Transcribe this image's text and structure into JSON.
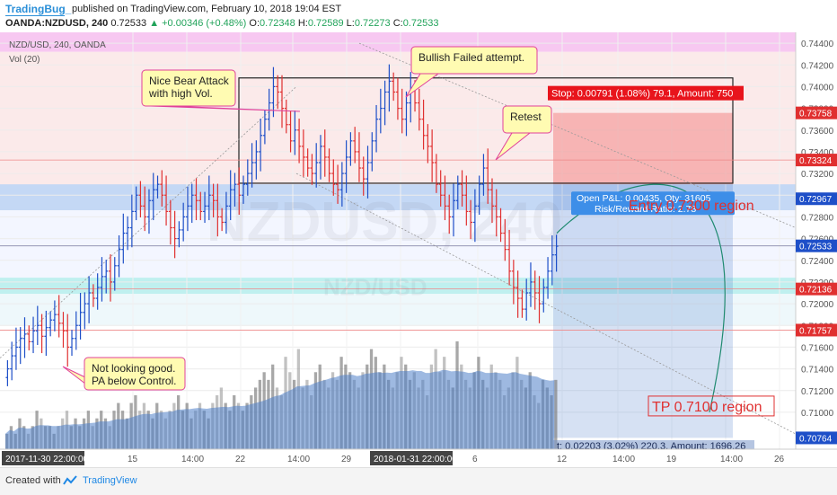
{
  "header": {
    "brand": "TradingBug_",
    "published": "published on TradingView.com, February 10, 2018 19:04 EST",
    "symbol": "OANDA:NZDUSD, 240",
    "last": "0.72533",
    "change": "▲ +0.00346 (+0.48%)",
    "o_label": "O:",
    "o": "0.72348",
    "h_label": "H:",
    "h": "0.72589",
    "l_label": "L:",
    "l": "0.72273",
    "c_label": "C:",
    "c": "0.72533"
  },
  "legend": {
    "main": "NZD/USD, 240, OANDA",
    "vol": "Vol (20)"
  },
  "footer": {
    "created": "Created with",
    "tv": "TradingView"
  },
  "annotations": {
    "bear": [
      "Nice Bear Attack",
      "with high Vol."
    ],
    "bullish": "Bullish Failed attempt.",
    "retest": "Retest",
    "notgood": [
      "Not looking good.",
      "PA below Control."
    ],
    "stop": "Stop: 0.00791 (1.08%) 79.1, Amount: 750",
    "openpl": [
      "Open P&L: 0.00435, Qty: 31605",
      "Risk/Reward Ratio: 2.78"
    ],
    "entry": "Entry 0.7300 region",
    "tp": "TP 0.7100 region",
    "target": "t: 0.02203 (3.02%) 220.3, Amount: 1696.26",
    "watermark1": "NZDUSD, 240",
    "watermark2": "NZD/USD"
  },
  "colors": {
    "up": "#1e4fc8",
    "down": "#e03030",
    "volume": "#4f7fc9",
    "grid": "#eeeeee"
  },
  "chart_data": {
    "type": "candlestick",
    "title": "NZD/USD, 240, OANDA",
    "ylim": [
      0.7066,
      0.745
    ],
    "yticks": [
      0.744,
      0.742,
      0.74,
      0.738,
      0.736,
      0.734,
      0.732,
      0.73,
      0.728,
      0.726,
      0.724,
      0.722,
      0.72,
      0.718,
      0.716,
      0.714,
      0.712,
      0.71
    ],
    "price_labels": [
      {
        "value": "0.73758",
        "y": 0.73758,
        "color": "#e03030"
      },
      {
        "value": "0.73324",
        "y": 0.73324,
        "color": "#e03030"
      },
      {
        "value": "0.72967",
        "y": 0.72967,
        "color": "#1e4fc8"
      },
      {
        "value": "0.72533",
        "y": 0.72533,
        "color": "#1e4fc8"
      },
      {
        "value": "0.72136",
        "y": 0.72136,
        "color": "#e03030"
      },
      {
        "value": "0.71757",
        "y": 0.71757,
        "color": "#e03030"
      },
      {
        "value": "0.70764",
        "y": 0.70764,
        "color": "#1e4fc8"
      }
    ],
    "xticks": [
      "15",
      "14:00",
      "22",
      "14:00",
      "29",
      "6",
      "12",
      "14:00",
      "19",
      "14:00",
      "26"
    ],
    "x_start_label": "2017-11-30 22:00:00",
    "x_mid_label": "2018-01-31 22:00:00",
    "close_series": [
      0.714,
      0.7152,
      0.716,
      0.7168,
      0.7172,
      0.7165,
      0.7175,
      0.718,
      0.717,
      0.7178,
      0.7185,
      0.719,
      0.7182,
      0.7175,
      0.716,
      0.7168,
      0.718,
      0.7192,
      0.72,
      0.721,
      0.7205,
      0.7215,
      0.7225,
      0.723,
      0.722,
      0.7235,
      0.725,
      0.7265,
      0.727,
      0.7285,
      0.73,
      0.729,
      0.728,
      0.7295,
      0.7305,
      0.731,
      0.73,
      0.7285,
      0.727,
      0.726,
      0.7268,
      0.728,
      0.729,
      0.73,
      0.7295,
      0.7285,
      0.729,
      0.73,
      0.7295,
      0.728,
      0.7275,
      0.729,
      0.7305,
      0.731,
      0.73,
      0.731,
      0.732,
      0.733,
      0.734,
      0.7355,
      0.737,
      0.7385,
      0.74,
      0.7395,
      0.738,
      0.7365,
      0.735,
      0.736,
      0.7345,
      0.7335,
      0.7325,
      0.732,
      0.733,
      0.7345,
      0.7335,
      0.732,
      0.731,
      0.7305,
      0.732,
      0.7335,
      0.735,
      0.734,
      0.7325,
      0.7315,
      0.733,
      0.735,
      0.737,
      0.738,
      0.7395,
      0.7405,
      0.7395,
      0.738,
      0.737,
      0.7385,
      0.7398,
      0.7385,
      0.737,
      0.7355,
      0.7345,
      0.733,
      0.731,
      0.73,
      0.729,
      0.728,
      0.7295,
      0.731,
      0.73,
      0.7285,
      0.7275,
      0.729,
      0.731,
      0.7325,
      0.7305,
      0.729,
      0.728,
      0.7265,
      0.725,
      0.723,
      0.7215,
      0.7205,
      0.7195,
      0.721,
      0.722,
      0.721,
      0.72,
      0.7215,
      0.723,
      0.7245,
      0.7253
    ],
    "volume": [
      2,
      3,
      2,
      4,
      3,
      2,
      3,
      5,
      4,
      3,
      3,
      2,
      3,
      4,
      5,
      3,
      4,
      3,
      4,
      5,
      3,
      4,
      5,
      4,
      3,
      5,
      6,
      5,
      4,
      6,
      7,
      5,
      6,
      5,
      4,
      6,
      5,
      4,
      5,
      6,
      7,
      5,
      6,
      4,
      5,
      6,
      5,
      4,
      6,
      7,
      8,
      6,
      5,
      7,
      6,
      5,
      6,
      7,
      8,
      9,
      10,
      9,
      11,
      8,
      7,
      12,
      10,
      9,
      13,
      8,
      9,
      7,
      10,
      11,
      9,
      8,
      10,
      9,
      12,
      11,
      10,
      9,
      8,
      10,
      11,
      13,
      12,
      10,
      11,
      9,
      8,
      10,
      12,
      11,
      9,
      10,
      8,
      9,
      7,
      11,
      13,
      10,
      12,
      9,
      8,
      14,
      11,
      9,
      8,
      10,
      12,
      9,
      8,
      11,
      10,
      9,
      7,
      8,
      10,
      12,
      9,
      8,
      10,
      7,
      6,
      9,
      8,
      7,
      9
    ],
    "tp_level": 0.71,
    "entry_level": 0.73,
    "stop_level": 0.73758
  }
}
